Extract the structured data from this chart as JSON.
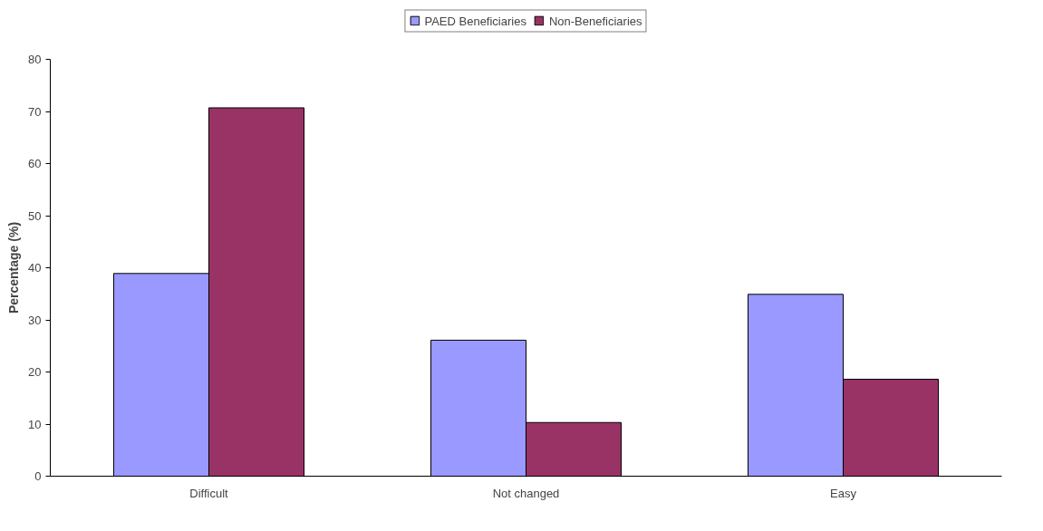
{
  "chart_data": {
    "type": "bar",
    "categories": [
      "Difficult",
      "Not changed",
      "Easy"
    ],
    "ylabel": "Percentage (%)",
    "ylim": [
      0,
      80
    ],
    "yticks": [
      0,
      10,
      20,
      30,
      40,
      50,
      60,
      70,
      80
    ],
    "grid": false,
    "legend": "top",
    "series": [
      {
        "name": "PAED Beneficiaries",
        "color": "#9999ff",
        "values": [
          38.9,
          26.1,
          34.9
        ]
      },
      {
        "name": "Non-Beneficiaries",
        "color": "#993366",
        "values": [
          70.7,
          10.3,
          18.6
        ]
      }
    ]
  }
}
